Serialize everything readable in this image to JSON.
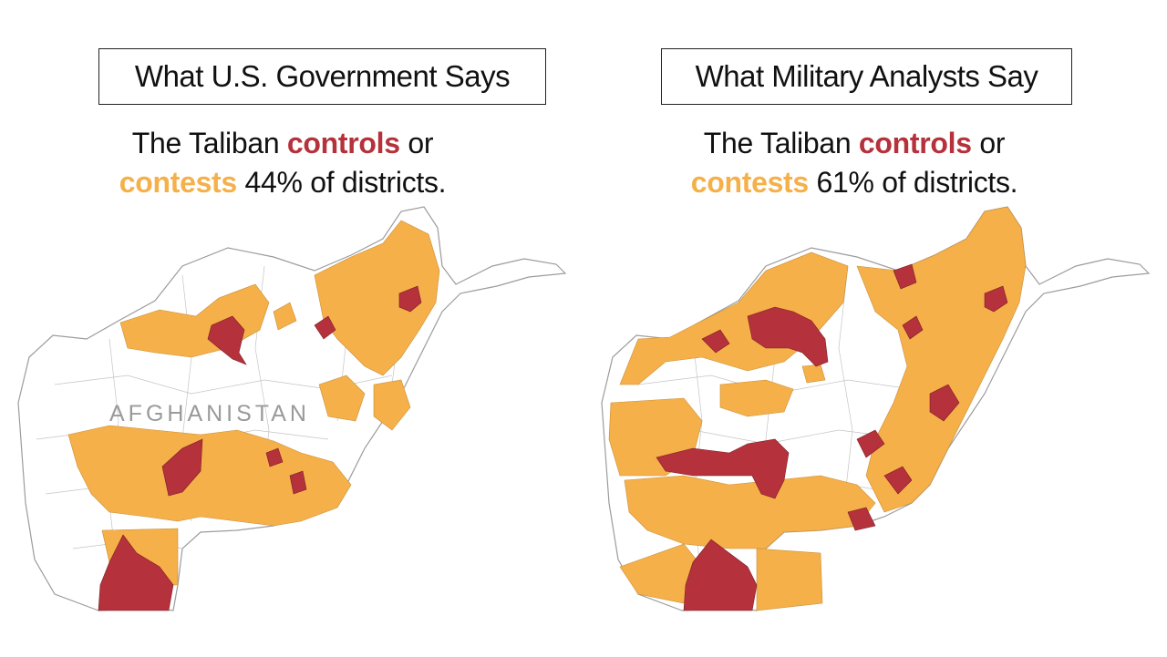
{
  "panels": [
    {
      "title": "What U.S. Government Says",
      "stat_prefix": "The Taliban ",
      "controls_word": "controls",
      "stat_or": " or",
      "contests_word": "contests",
      "stat_suffix": " 44% of districts.",
      "map_label": "AFGHANISTAN"
    },
    {
      "title": "What Military Analysts Say",
      "stat_prefix": "The Taliban ",
      "controls_word": "controls",
      "stat_or": " or",
      "contests_word": "contests",
      "stat_suffix": " 61% of districts."
    }
  ],
  "legend_colors": {
    "controls": "#b5313b",
    "contests": "#f5b049",
    "other": "#ffffff",
    "border": "#9c9c9c"
  }
}
